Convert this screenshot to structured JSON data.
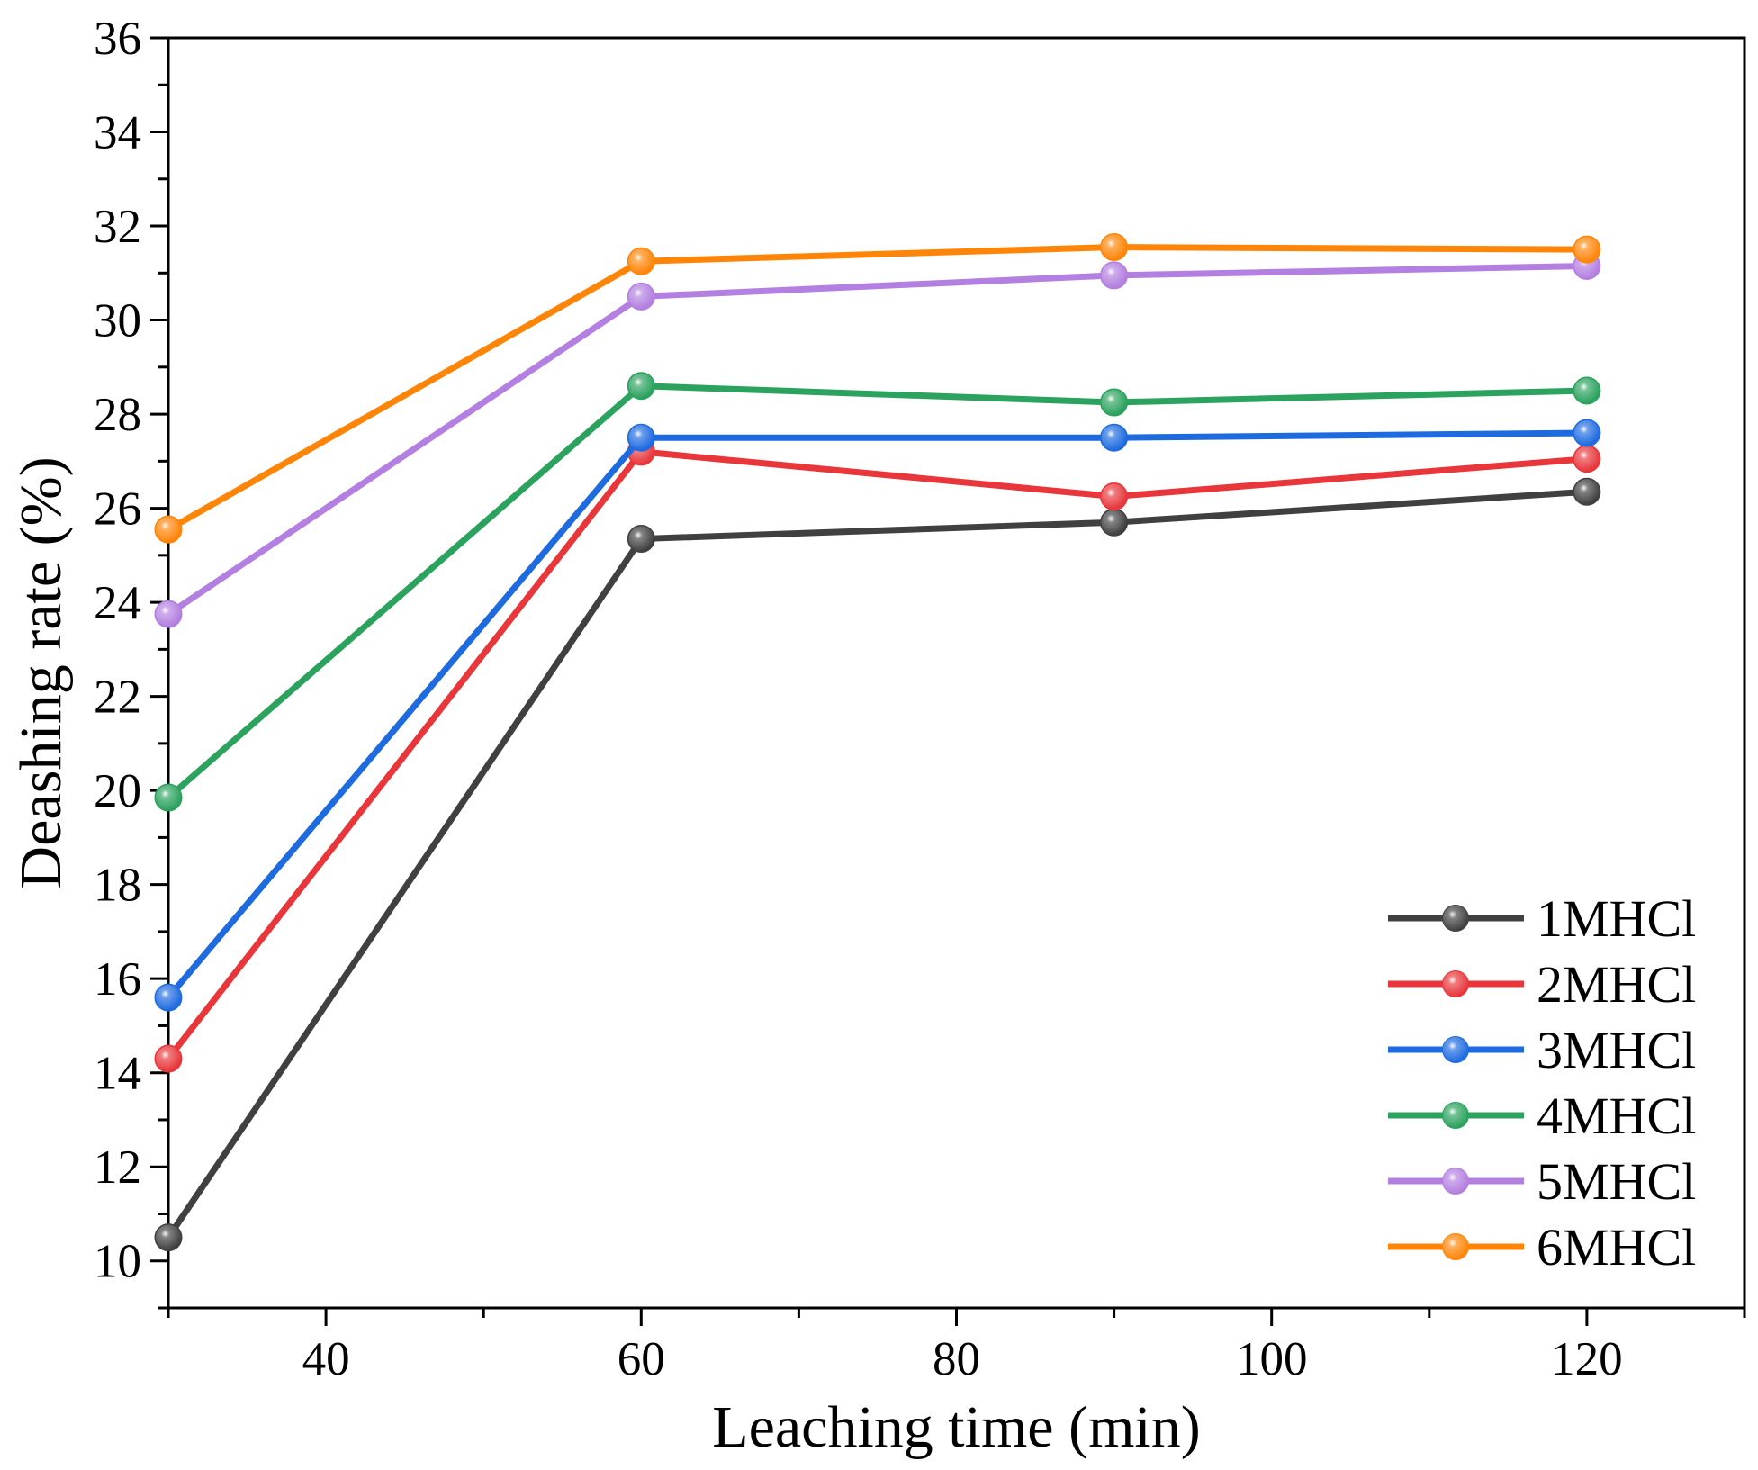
{
  "chart_data": {
    "type": "line",
    "title": "",
    "xlabel": "Leaching time (min)",
    "ylabel": "Deashing rate (%)",
    "xlim": [
      30,
      130
    ],
    "ylim": [
      9,
      36
    ],
    "xticks": [
      40,
      60,
      80,
      100,
      120
    ],
    "yticks": [
      10,
      12,
      14,
      16,
      18,
      20,
      22,
      24,
      26,
      28,
      30,
      32,
      34,
      36
    ],
    "x": [
      30,
      60,
      90,
      120
    ],
    "legend_position": "bottom-right",
    "series": [
      {
        "name": "1MHCl",
        "color": "#404040",
        "values": [
          10.5,
          25.35,
          25.7,
          26.35
        ]
      },
      {
        "name": "2MHCl",
        "color": "#e8363b",
        "values": [
          14.3,
          27.2,
          26.25,
          27.05
        ]
      },
      {
        "name": "3MHCl",
        "color": "#1e6be0",
        "values": [
          15.6,
          27.5,
          27.5,
          27.6
        ]
      },
      {
        "name": "4MHCl",
        "color": "#2ba25e",
        "values": [
          19.85,
          28.6,
          28.25,
          28.5
        ]
      },
      {
        "name": "5MHCl",
        "color": "#b37fe0",
        "values": [
          23.75,
          30.5,
          30.95,
          31.15
        ]
      },
      {
        "name": "6MHCl",
        "color": "#ff8508",
        "values": [
          25.55,
          31.25,
          31.55,
          31.5
        ]
      }
    ]
  }
}
